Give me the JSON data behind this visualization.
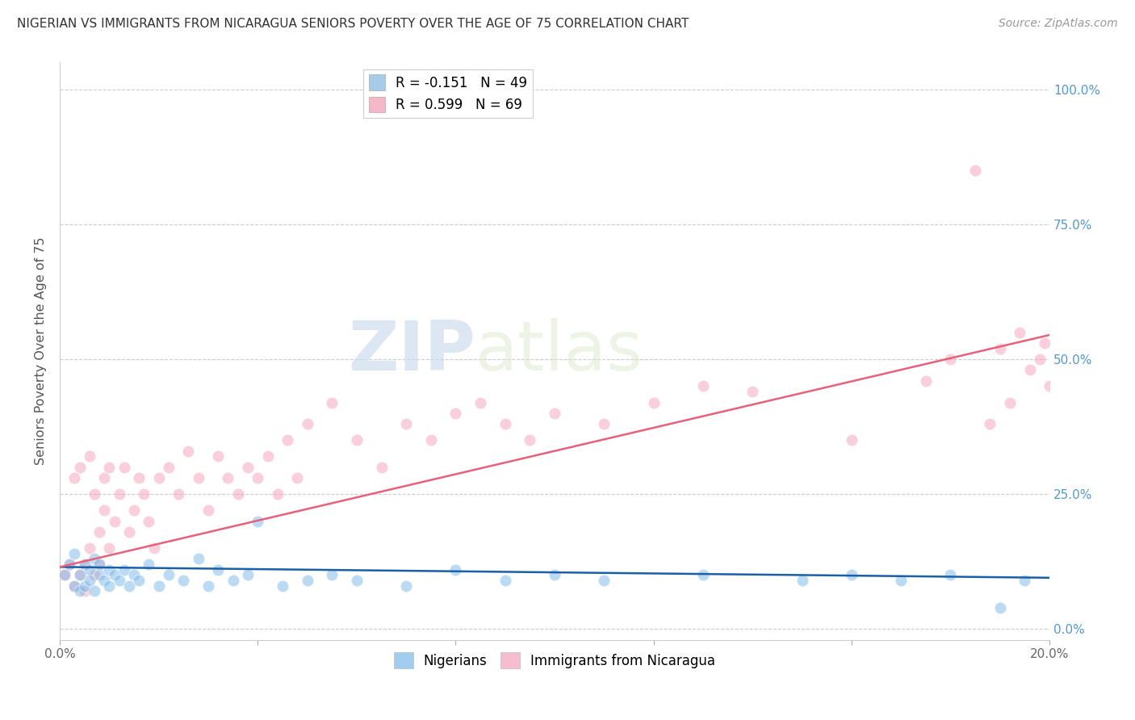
{
  "title": "NIGERIAN VS IMMIGRANTS FROM NICARAGUA SENIORS POVERTY OVER THE AGE OF 75 CORRELATION CHART",
  "source": "Source: ZipAtlas.com",
  "ylabel": "Seniors Poverty Over the Age of 75",
  "xlim": [
    0.0,
    0.2
  ],
  "ylim": [
    -0.02,
    1.05
  ],
  "yticks": [
    0.0,
    0.25,
    0.5,
    0.75,
    1.0
  ],
  "ytick_labels_right": [
    "0.0%",
    "25.0%",
    "50.0%",
    "75.0%",
    "100.0%"
  ],
  "xticks": [
    0.0,
    0.04,
    0.08,
    0.12,
    0.16,
    0.2
  ],
  "xtick_labels": [
    "0.0%",
    "",
    "",
    "",
    "",
    "20.0%"
  ],
  "watermark_zip": "ZIP",
  "watermark_atlas": "atlas",
  "legend_entries": [
    {
      "label": "R = -0.151   N = 49",
      "color": "#a8cce8"
    },
    {
      "label": "R = 0.599   N = 69",
      "color": "#f4b8c8"
    }
  ],
  "nigerian_color": "#7ab8e8",
  "nicaragua_color": "#f4a0b8",
  "nigerian_line_color": "#1a5fa8",
  "nicaragua_line_color": "#e8607a",
  "nigerian_x": [
    0.001,
    0.002,
    0.003,
    0.003,
    0.004,
    0.004,
    0.005,
    0.005,
    0.006,
    0.006,
    0.007,
    0.007,
    0.008,
    0.008,
    0.009,
    0.01,
    0.01,
    0.011,
    0.012,
    0.013,
    0.014,
    0.015,
    0.016,
    0.018,
    0.02,
    0.022,
    0.025,
    0.028,
    0.03,
    0.032,
    0.035,
    0.038,
    0.04,
    0.045,
    0.05,
    0.055,
    0.06,
    0.07,
    0.08,
    0.09,
    0.1,
    0.11,
    0.13,
    0.15,
    0.16,
    0.17,
    0.18,
    0.19,
    0.195
  ],
  "nigerian_y": [
    0.1,
    0.12,
    0.08,
    0.14,
    0.1,
    0.07,
    0.12,
    0.08,
    0.11,
    0.09,
    0.13,
    0.07,
    0.1,
    0.12,
    0.09,
    0.11,
    0.08,
    0.1,
    0.09,
    0.11,
    0.08,
    0.1,
    0.09,
    0.12,
    0.08,
    0.1,
    0.09,
    0.13,
    0.08,
    0.11,
    0.09,
    0.1,
    0.2,
    0.08,
    0.09,
    0.1,
    0.09,
    0.08,
    0.11,
    0.09,
    0.1,
    0.09,
    0.1,
    0.09,
    0.1,
    0.09,
    0.1,
    0.04,
    0.09
  ],
  "nicaragua_x": [
    0.001,
    0.002,
    0.003,
    0.003,
    0.004,
    0.004,
    0.005,
    0.005,
    0.006,
    0.006,
    0.007,
    0.007,
    0.008,
    0.008,
    0.009,
    0.009,
    0.01,
    0.01,
    0.011,
    0.012,
    0.013,
    0.014,
    0.015,
    0.016,
    0.017,
    0.018,
    0.019,
    0.02,
    0.022,
    0.024,
    0.026,
    0.028,
    0.03,
    0.032,
    0.034,
    0.036,
    0.038,
    0.04,
    0.042,
    0.044,
    0.046,
    0.048,
    0.05,
    0.055,
    0.06,
    0.065,
    0.07,
    0.075,
    0.08,
    0.085,
    0.09,
    0.095,
    0.1,
    0.11,
    0.12,
    0.13,
    0.14,
    0.16,
    0.175,
    0.18,
    0.185,
    0.188,
    0.19,
    0.192,
    0.194,
    0.196,
    0.198,
    0.199,
    0.2
  ],
  "nicaragua_y": [
    0.1,
    0.12,
    0.28,
    0.08,
    0.1,
    0.3,
    0.12,
    0.07,
    0.32,
    0.15,
    0.1,
    0.25,
    0.18,
    0.12,
    0.28,
    0.22,
    0.15,
    0.3,
    0.2,
    0.25,
    0.3,
    0.18,
    0.22,
    0.28,
    0.25,
    0.2,
    0.15,
    0.28,
    0.3,
    0.25,
    0.33,
    0.28,
    0.22,
    0.32,
    0.28,
    0.25,
    0.3,
    0.28,
    0.32,
    0.25,
    0.35,
    0.28,
    0.38,
    0.42,
    0.35,
    0.3,
    0.38,
    0.35,
    0.4,
    0.42,
    0.38,
    0.35,
    0.4,
    0.38,
    0.42,
    0.45,
    0.44,
    0.35,
    0.46,
    0.5,
    0.85,
    0.38,
    0.52,
    0.42,
    0.55,
    0.48,
    0.5,
    0.53,
    0.45
  ],
  "nigerian_line_x0": 0.0,
  "nigerian_line_x1": 0.2,
  "nigerian_line_y0": 0.115,
  "nigerian_line_y1": 0.095,
  "nicaragua_line_x0": 0.0,
  "nicaragua_line_x1": 0.2,
  "nicaragua_line_y0": 0.115,
  "nicaragua_line_y1": 0.545
}
